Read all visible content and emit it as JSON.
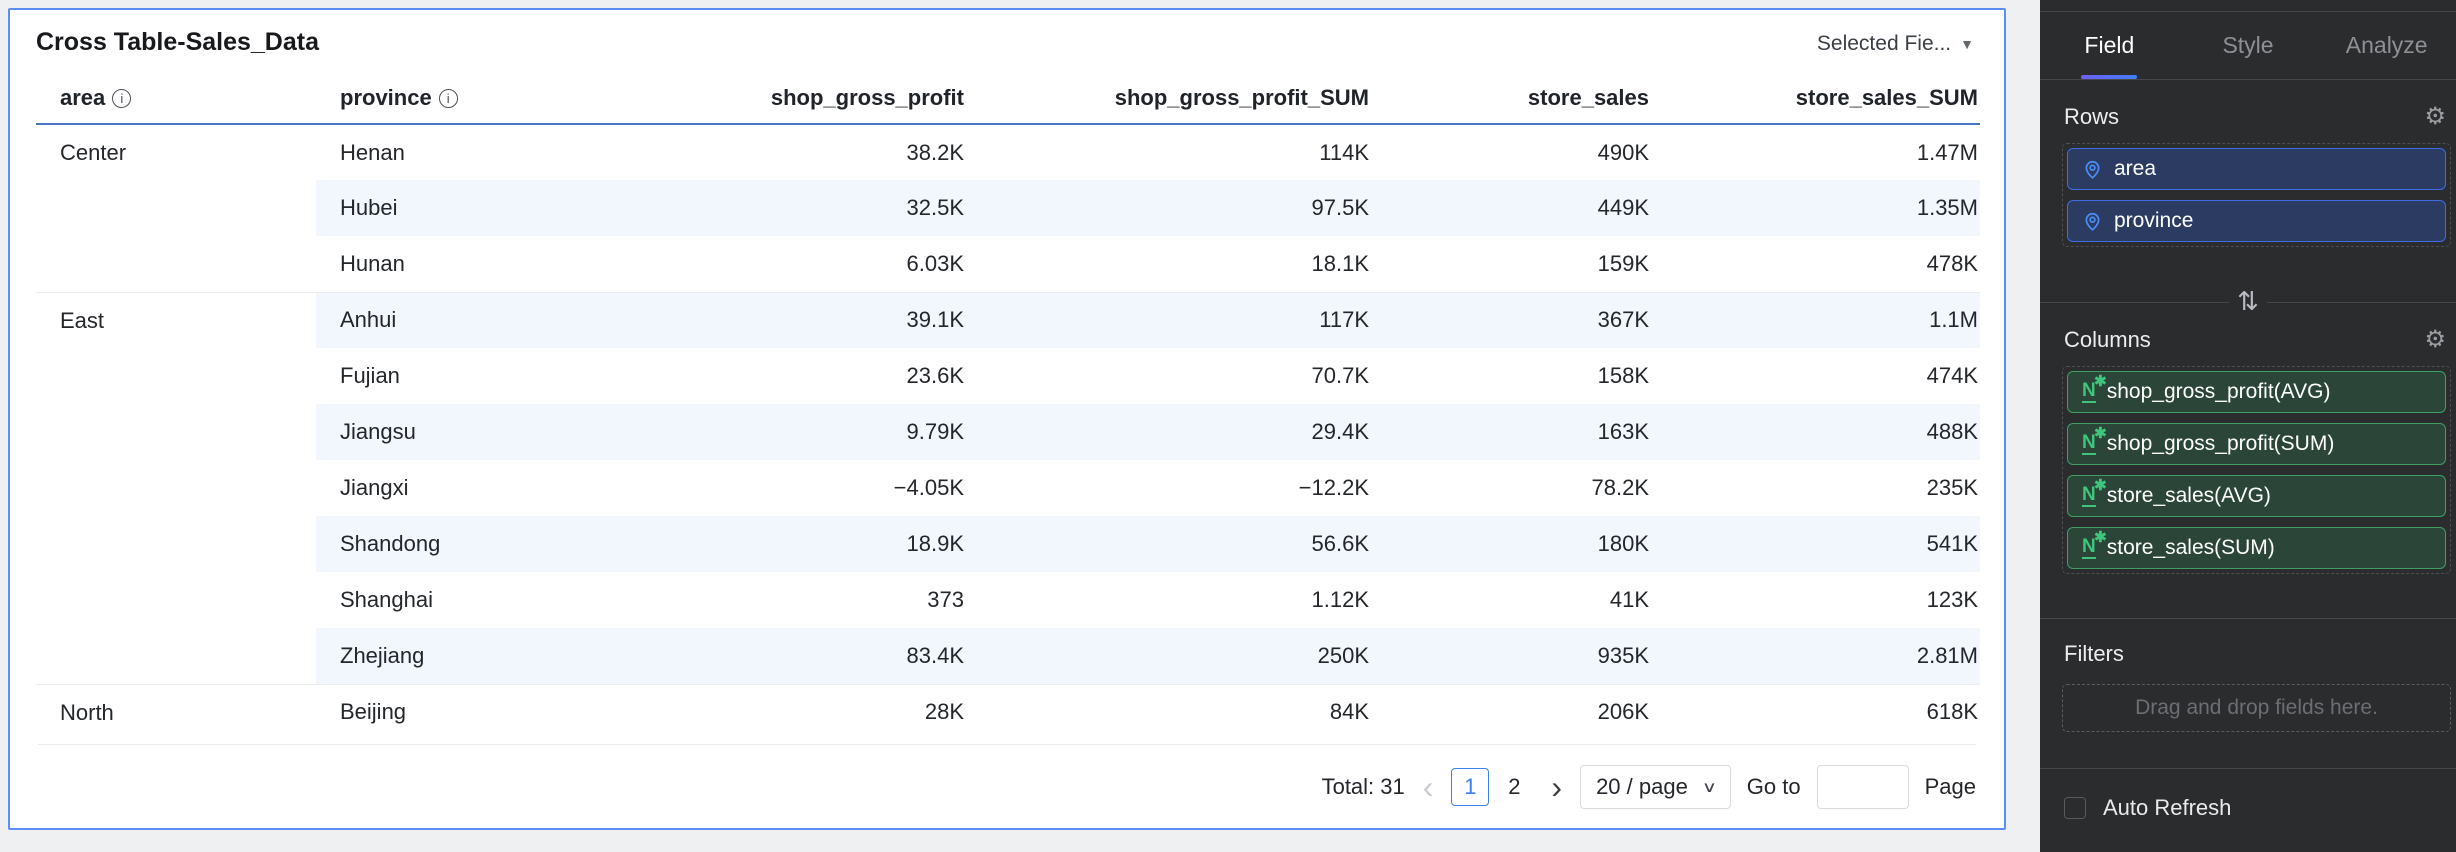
{
  "card": {
    "title": "Cross Table-Sales_Data",
    "selected_fields_label": "Selected Fie...",
    "columns": [
      {
        "label": "area",
        "info": true,
        "align": "left"
      },
      {
        "label": "province",
        "info": true,
        "align": "left"
      },
      {
        "label": "shop_gross_profit",
        "info": false,
        "align": "right"
      },
      {
        "label": "shop_gross_profit_SUM",
        "info": false,
        "align": "right"
      },
      {
        "label": "store_sales",
        "info": false,
        "align": "right"
      },
      {
        "label": "store_sales_SUM",
        "info": false,
        "align": "right"
      }
    ],
    "chart_data": {
      "type": "table",
      "title": "Cross Table-Sales_Data",
      "columns": [
        "area",
        "province",
        "shop_gross_profit",
        "shop_gross_profit_SUM",
        "store_sales",
        "store_sales_SUM"
      ],
      "rows": [
        {
          "area": "Center",
          "province": "Henan",
          "values": [
            "38.2K",
            "114K",
            "490K",
            "1.47M"
          ]
        },
        {
          "area": null,
          "province": "Hubei",
          "values": [
            "32.5K",
            "97.5K",
            "449K",
            "1.35M"
          ]
        },
        {
          "area": null,
          "province": "Hunan",
          "values": [
            "6.03K",
            "18.1K",
            "159K",
            "478K"
          ]
        },
        {
          "area": "East",
          "province": "Anhui",
          "values": [
            "39.1K",
            "117K",
            "367K",
            "1.1M"
          ]
        },
        {
          "area": null,
          "province": "Fujian",
          "values": [
            "23.6K",
            "70.7K",
            "158K",
            "474K"
          ]
        },
        {
          "area": null,
          "province": "Jiangsu",
          "values": [
            "9.79K",
            "29.4K",
            "163K",
            "488K"
          ]
        },
        {
          "area": null,
          "province": "Jiangxi",
          "values": [
            "-4.05K",
            "-12.2K",
            "78.2K",
            "235K"
          ]
        },
        {
          "area": null,
          "province": "Shandong",
          "values": [
            "18.9K",
            "56.6K",
            "180K",
            "541K"
          ]
        },
        {
          "area": null,
          "province": "Shanghai",
          "values": [
            "373",
            "1.12K",
            "41K",
            "123K"
          ]
        },
        {
          "area": null,
          "province": "Zhejiang",
          "values": [
            "83.4K",
            "250K",
            "935K",
            "2.81M"
          ]
        },
        {
          "area": "North",
          "province": "Beijing",
          "values": [
            "28K",
            "84K",
            "206K",
            "618K"
          ]
        }
      ]
    },
    "pagination": {
      "total_label": "Total: 31",
      "prev_icon": "‹",
      "next_icon": "›",
      "pages": [
        "1",
        "2"
      ],
      "active_page": "1",
      "page_size_label": "20 / page",
      "goto_label": "Go to",
      "goto_value": "",
      "page_label": "Page"
    }
  },
  "panel": {
    "tabs": [
      {
        "label": "Field",
        "active": true
      },
      {
        "label": "Style",
        "active": false
      },
      {
        "label": "Analyze",
        "active": false
      }
    ],
    "rows_section": {
      "title": "Rows",
      "fields": [
        "area",
        "province"
      ]
    },
    "columns_section": {
      "title": "Columns",
      "fields": [
        "shop_gross_profit(AVG)",
        "shop_gross_profit(SUM)",
        "store_sales(AVG)",
        "store_sales(SUM)"
      ]
    },
    "filters_section": {
      "title": "Filters",
      "placeholder": "Drag and drop fields here."
    },
    "auto_refresh": {
      "label": "Auto Refresh",
      "checked": false
    }
  },
  "colors": {
    "accent_blue": "#3d7ff5",
    "card_border": "#5b8ff5",
    "header_rule": "#4a77c4",
    "row_stripe": "#f2f7fd",
    "panel_bg": "#2a2c2e",
    "dimension_pill_border": "#3e6de4",
    "dimension_pill_bg": "#2b3b62",
    "measure_pill_border": "#3f9e62",
    "measure_pill_bg": "#2b4538",
    "measure_icon_green": "#3ec77b",
    "tab_underline_from": "#6f5ef6",
    "tab_underline_to": "#3f7ff7"
  }
}
